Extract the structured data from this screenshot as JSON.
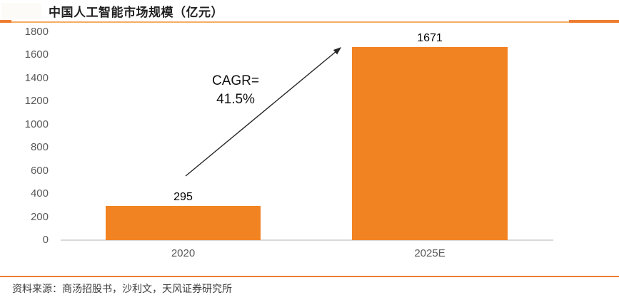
{
  "header": {
    "title": "中国人工智能市场规模（亿元）",
    "accent_color": "#ED7D31",
    "rule_light_color": "#F5AC64"
  },
  "chart_data": {
    "type": "bar",
    "title": "中国人工智能市场规模（亿元）",
    "categories": [
      "2020",
      "2025E"
    ],
    "values": [
      295,
      1671
    ],
    "value_labels": [
      "295",
      "1671"
    ],
    "xlabel": "",
    "ylabel": "",
    "ylim": [
      0,
      1800
    ],
    "ytick_step": 200,
    "grid": false,
    "legend": "none",
    "bar_color": "#F28322",
    "axis_label_color": "#595959",
    "baseline_color": "#D9D9D9",
    "annotation": {
      "line1": "CAGR=",
      "line2": "41.5%",
      "arrow_color": "#262626"
    }
  },
  "footer": {
    "source": "资料来源：商汤招股书，沙利文，天风证券研究所"
  }
}
